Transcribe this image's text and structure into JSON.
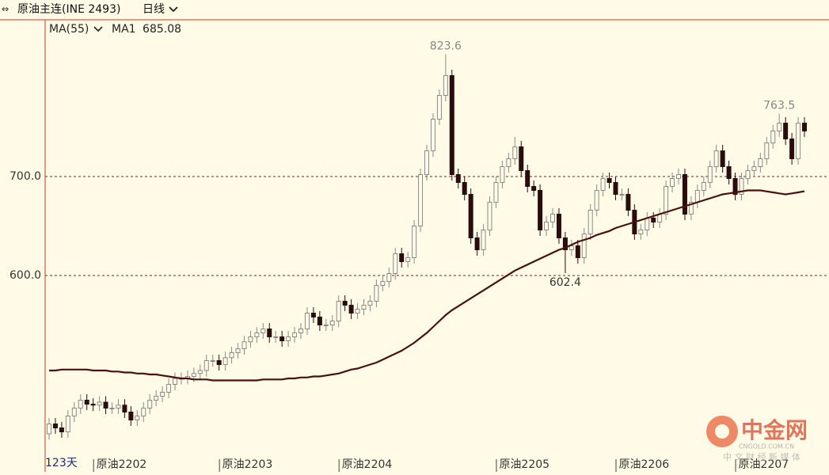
{
  "chart_data": {
    "type": "candlestick",
    "title": "原油主连(INE 2493)",
    "period": "日线",
    "indicator": "MA(55)",
    "x_label": "123天",
    "up_color": "#fffbe6",
    "up_stroke": "#8a8a8a",
    "down_color": "#2b0c0c",
    "grid_color": "#8b1a1a",
    "ylim": [
      402,
      856
    ],
    "yticks": [
      {
        "value": 600,
        "label": "600.0"
      },
      {
        "value": 700,
        "label": "700.0"
      }
    ],
    "grid": true,
    "categories": [
      null,
      null,
      null,
      null,
      null,
      null,
      null,
      "原油2202",
      null,
      null,
      null,
      null,
      null,
      null,
      null,
      null,
      null,
      null,
      null,
      null,
      null,
      null,
      null,
      null,
      null,
      null,
      null,
      "原油2203",
      null,
      null,
      null,
      null,
      null,
      null,
      null,
      null,
      null,
      null,
      null,
      null,
      null,
      null,
      null,
      null,
      null,
      null,
      "原油2204",
      null,
      null,
      null,
      null,
      null,
      null,
      null,
      null,
      null,
      null,
      null,
      null,
      null,
      null,
      null,
      null,
      null,
      null,
      null,
      null,
      null,
      null,
      null,
      null,
      "原油2205",
      null,
      null,
      null,
      null,
      null,
      null,
      null,
      null,
      null,
      null,
      null,
      null,
      null,
      null,
      null,
      null,
      null,
      null,
      "原油2206",
      null,
      null,
      null,
      null,
      null,
      null,
      null,
      null,
      null,
      null,
      null,
      null,
      null,
      null,
      null,
      null,
      null,
      null,
      "原油2207",
      null,
      null,
      null,
      null,
      null,
      null,
      null,
      null,
      null,
      null,
      null
    ],
    "open": [
      440,
      450,
      446,
      442,
      458,
      466,
      474,
      470,
      469,
      472,
      466,
      466,
      469,
      462,
      454,
      458,
      466,
      474,
      478,
      482,
      490,
      496,
      496,
      498,
      501,
      504,
      514,
      514,
      510,
      517,
      522,
      526,
      533,
      538,
      542,
      546,
      538,
      538,
      534,
      538,
      542,
      546,
      562,
      558,
      550,
      550,
      554,
      574,
      570,
      562,
      566,
      570,
      574,
      590,
      594,
      602,
      622,
      614,
      618,
      650,
      702,
      726,
      758,
      782,
      802,
      702,
      694,
      682,
      638,
      626,
      646,
      674,
      694,
      710,
      718,
      730,
      706,
      690,
      686,
      646,
      654,
      662,
      638,
      626,
      630,
      618,
      642,
      666,
      686,
      698,
      694,
      682,
      682,
      666,
      642,
      646,
      658,
      654,
      662,
      690,
      698,
      702,
      662,
      674,
      686,
      694,
      710,
      726,
      710,
      698,
      682,
      698,
      706,
      710,
      718,
      734,
      746,
      754,
      738,
      718,
      754
    ],
    "high": [
      456,
      456,
      452,
      464,
      472,
      480,
      480,
      476,
      478,
      478,
      472,
      475,
      475,
      468,
      464,
      472,
      480,
      484,
      488,
      496,
      502,
      502,
      504,
      507,
      510,
      520,
      520,
      520,
      523,
      528,
      532,
      539,
      544,
      548,
      552,
      552,
      544,
      544,
      544,
      548,
      552,
      568,
      568,
      564,
      556,
      560,
      580,
      580,
      576,
      572,
      576,
      580,
      596,
      600,
      608,
      628,
      628,
      624,
      656,
      708,
      732,
      764,
      788,
      823.6,
      808,
      708,
      700,
      688,
      644,
      652,
      680,
      700,
      716,
      724,
      740,
      736,
      712,
      696,
      692,
      660,
      668,
      668,
      644,
      636,
      636,
      648,
      672,
      692,
      704,
      704,
      700,
      688,
      688,
      672,
      652,
      664,
      664,
      668,
      696,
      704,
      708,
      708,
      680,
      692,
      700,
      716,
      732,
      732,
      716,
      704,
      704,
      712,
      716,
      724,
      740,
      752,
      763.5,
      760,
      744,
      760,
      760
    ],
    "low": [
      434,
      440,
      436,
      436,
      452,
      460,
      464,
      463,
      463,
      460,
      460,
      460,
      456,
      448,
      448,
      452,
      460,
      468,
      472,
      476,
      484,
      490,
      490,
      492,
      495,
      498,
      508,
      504,
      504,
      511,
      516,
      520,
      527,
      532,
      536,
      532,
      532,
      528,
      528,
      532,
      536,
      540,
      552,
      544,
      544,
      544,
      548,
      564,
      556,
      556,
      560,
      564,
      568,
      584,
      588,
      596,
      608,
      608,
      612,
      644,
      696,
      720,
      752,
      776,
      696,
      688,
      676,
      632,
      620,
      620,
      640,
      668,
      688,
      704,
      712,
      700,
      684,
      680,
      640,
      640,
      648,
      632,
      602.4,
      620,
      612,
      612,
      636,
      660,
      680,
      688,
      676,
      676,
      660,
      636,
      636,
      640,
      648,
      648,
      656,
      684,
      692,
      656,
      656,
      668,
      680,
      688,
      704,
      704,
      692,
      676,
      676,
      692,
      700,
      704,
      712,
      728,
      740,
      732,
      712,
      712,
      740
    ],
    "close": [
      450,
      446,
      442,
      458,
      466,
      474,
      470,
      469,
      472,
      466,
      466,
      469,
      462,
      454,
      458,
      466,
      474,
      478,
      482,
      490,
      496,
      496,
      498,
      501,
      504,
      514,
      514,
      510,
      517,
      522,
      526,
      533,
      538,
      542,
      546,
      538,
      538,
      534,
      538,
      542,
      546,
      562,
      558,
      550,
      550,
      554,
      574,
      570,
      562,
      566,
      570,
      574,
      590,
      594,
      602,
      622,
      614,
      618,
      650,
      702,
      726,
      758,
      782,
      802,
      702,
      694,
      682,
      638,
      626,
      646,
      674,
      694,
      710,
      718,
      730,
      706,
      690,
      686,
      646,
      654,
      662,
      638,
      626,
      630,
      618,
      642,
      666,
      686,
      698,
      694,
      682,
      682,
      666,
      642,
      646,
      658,
      654,
      662,
      690,
      698,
      702,
      662,
      674,
      686,
      694,
      710,
      726,
      710,
      698,
      682,
      698,
      706,
      710,
      718,
      734,
      746,
      754,
      738,
      718,
      754,
      746
    ],
    "series": [
      {
        "name": "MA1",
        "color": "#4a1010",
        "values": [
          504,
          504,
          505,
          505,
          505,
          505,
          505,
          504,
          504,
          504,
          503,
          503,
          502,
          502,
          501,
          501,
          500,
          500,
          499,
          498,
          497,
          496,
          496,
          495,
          495,
          495,
          494,
          494,
          494,
          494,
          494,
          494,
          494,
          494,
          495,
          495,
          495,
          495,
          496,
          496,
          497,
          497,
          498,
          498,
          499,
          500,
          501,
          503,
          505,
          506,
          508,
          510,
          512,
          515,
          518,
          521,
          524,
          528,
          532,
          537,
          542,
          548,
          554,
          560,
          565,
          569,
          573,
          577,
          581,
          585,
          589,
          593,
          597,
          601,
          605,
          608,
          611,
          614,
          617,
          620,
          623,
          626,
          628,
          631,
          634,
          636,
          638,
          641,
          643,
          645,
          648,
          650,
          652,
          654,
          656,
          658,
          660,
          662,
          664,
          666,
          668,
          670,
          672,
          674,
          676,
          678,
          680,
          682,
          683,
          684,
          685,
          686,
          686,
          686,
          685,
          684,
          683,
          682,
          683,
          684,
          685.08
        ]
      }
    ]
  },
  "watermark": {
    "brand": "中金网",
    "site": "CNGOLD.COM.CN",
    "slogan": "中 文 财 经 新 媒 体"
  }
}
